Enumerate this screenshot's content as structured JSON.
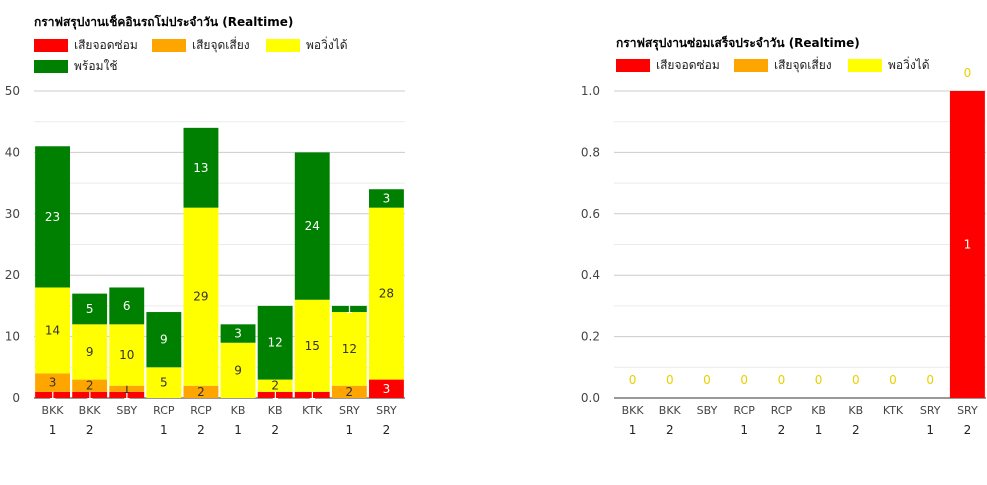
{
  "chart_data": [
    {
      "type": "bar",
      "stacked": true,
      "title": "กราฟสรุปงานเช็คอินรถโม่ประจำวัน (Realtime)",
      "legend": [
        "เสียจอดซ่อม",
        "เสียจุดเสี่ยง",
        "พอวิ่งได้",
        "พร้อมใช้"
      ],
      "categories": [
        "BKK 1",
        "BKK 2",
        "SBY",
        "RCP 1",
        "RCP 2",
        "KB 1",
        "KB 2",
        "KTK",
        "SRY 1",
        "SRY 2"
      ],
      "x_tick_lines": [
        [
          "BKK",
          "1"
        ],
        [
          "BKK",
          "2"
        ],
        [
          "SBY",
          ""
        ],
        [
          "RCP",
          "1"
        ],
        [
          "RCP",
          "2"
        ],
        [
          "KB",
          "1"
        ],
        [
          "KB",
          "2"
        ],
        [
          "KTK",
          ""
        ],
        [
          "SRY",
          "1"
        ],
        [
          "SRY",
          "2"
        ]
      ],
      "series": [
        {
          "name": "เสียจอดซ่อม",
          "color": "#ff0000",
          "values": [
            1,
            1,
            1,
            0,
            0,
            0,
            1,
            1,
            0,
            3
          ]
        },
        {
          "name": "เสียจุดเสี่ยง",
          "color": "#ffa500",
          "values": [
            3,
            2,
            1,
            0,
            2,
            0,
            0,
            0,
            2,
            0
          ]
        },
        {
          "name": "พอวิ่งได้",
          "color": "#ffff00",
          "values": [
            14,
            9,
            10,
            5,
            29,
            9,
            2,
            15,
            12,
            28
          ]
        },
        {
          "name": "พร้อมใช้",
          "color": "#008000",
          "values": [
            23,
            5,
            6,
            9,
            13,
            3,
            12,
            24,
            1,
            3
          ]
        }
      ],
      "y_ticks": [
        0,
        10,
        20,
        30,
        40,
        50
      ],
      "ylim": [
        0,
        50
      ],
      "grid": true,
      "legend_position": "top"
    },
    {
      "type": "bar",
      "stacked": true,
      "title": "กราฟสรุปงานซ่อมเสร็จประจำวัน (Realtime)",
      "legend": [
        "เสียจอดซ่อม",
        "เสียจุดเสี่ยง",
        "พอวิ่งได้"
      ],
      "categories": [
        "BKK 1",
        "BKK 2",
        "SBY",
        "RCP 1",
        "RCP 2",
        "KB 1",
        "KB 2",
        "KTK",
        "SRY 1",
        "SRY 2"
      ],
      "x_tick_lines": [
        [
          "BKK",
          "1"
        ],
        [
          "BKK",
          "2"
        ],
        [
          "SBY",
          ""
        ],
        [
          "RCP",
          "1"
        ],
        [
          "RCP",
          "2"
        ],
        [
          "KB",
          "1"
        ],
        [
          "KB",
          "2"
        ],
        [
          "KTK",
          ""
        ],
        [
          "SRY",
          "1"
        ],
        [
          "SRY",
          "2"
        ]
      ],
      "series": [
        {
          "name": "เสียจอดซ่อม",
          "color": "#ff0000",
          "values": [
            0,
            0,
            0,
            0,
            0,
            0,
            0,
            0,
            0,
            1
          ]
        },
        {
          "name": "เสียจุดเสี่ยง",
          "color": "#ffa500",
          "values": [
            0,
            0,
            0,
            0,
            0,
            0,
            0,
            0,
            0,
            0
          ]
        },
        {
          "name": "พอวิ่งได้",
          "color": "#ffff00",
          "values": [
            0,
            0,
            0,
            0,
            0,
            0,
            0,
            0,
            0,
            0
          ]
        }
      ],
      "y_ticks": [
        "0.0",
        "0.2",
        "0.4",
        "0.6",
        "0.8",
        "1.0"
      ],
      "ylim": [
        0,
        1
      ],
      "grid": true,
      "legend_position": "top"
    }
  ]
}
